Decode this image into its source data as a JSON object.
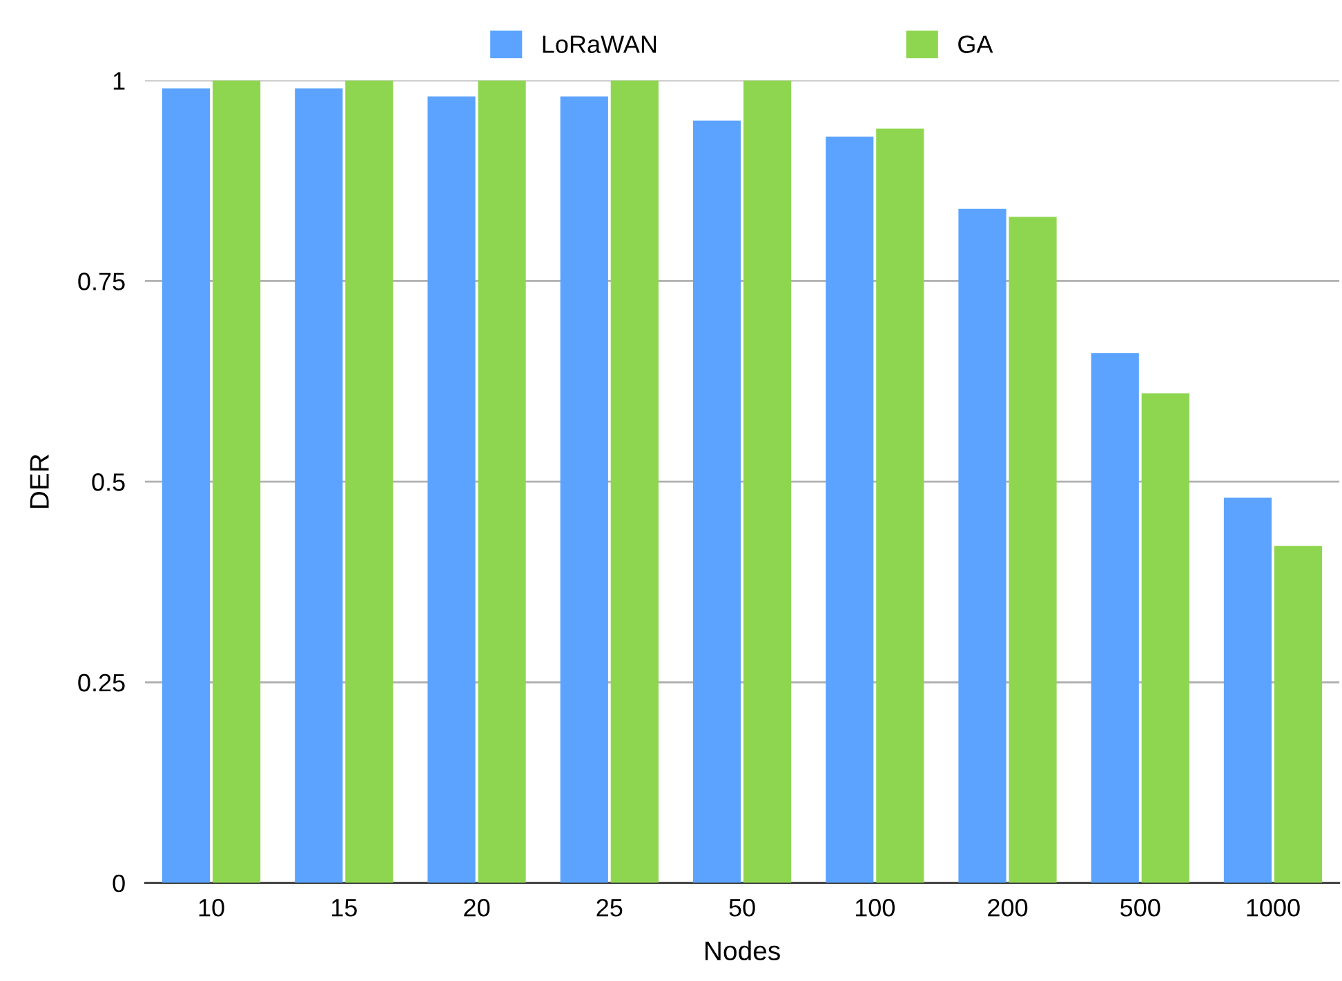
{
  "chart_data": {
    "type": "bar",
    "xlabel": "Nodes",
    "ylabel": "DER",
    "categories": [
      "10",
      "15",
      "20",
      "25",
      "50",
      "100",
      "200",
      "500",
      "1000"
    ],
    "series": [
      {
        "name": "LoRaWAN",
        "color": "#5ba3ff",
        "values": [
          0.99,
          0.99,
          0.98,
          0.98,
          0.95,
          0.93,
          0.84,
          0.66,
          0.48
        ]
      },
      {
        "name": "GA",
        "color": "#8fd650",
        "values": [
          1.0,
          1.0,
          1.0,
          1.0,
          1.0,
          0.94,
          0.83,
          0.61,
          0.42
        ]
      }
    ],
    "ylim": [
      0,
      1
    ],
    "yticks": [
      0,
      0.25,
      0.5,
      0.75,
      1
    ],
    "grid": "y",
    "legend": "top"
  }
}
